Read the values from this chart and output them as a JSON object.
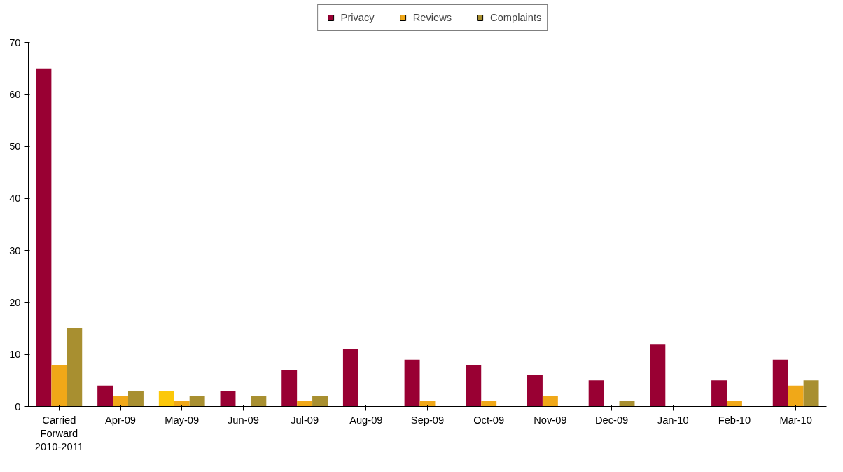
{
  "chart_data": {
    "type": "bar",
    "categories": [
      "Carried\nForward\n2010-2011",
      "Apr-09",
      "May-09",
      "Jun-09",
      "Jul-09",
      "Aug-09",
      "Sep-09",
      "Oct-09",
      "Nov-09",
      "Dec-09",
      "Jan-10",
      "Feb-10",
      "Mar-10"
    ],
    "series": [
      {
        "name": "Privacy",
        "color": "#990033",
        "colors": [
          "#990033",
          "#990033",
          "#fcc80a",
          "#990033",
          "#990033",
          "#990033",
          "#990033",
          "#990033",
          "#990033",
          "#990033",
          "#990033",
          "#990033",
          "#990033"
        ],
        "values": [
          65,
          4,
          3,
          3,
          7,
          11,
          9,
          8,
          6,
          5,
          12,
          5,
          9
        ]
      },
      {
        "name": "Reviews",
        "color": "#f0a818",
        "values": [
          8,
          2,
          1,
          0,
          1,
          0,
          1,
          1,
          2,
          0,
          0,
          1,
          4
        ]
      },
      {
        "name": "Complaints",
        "color": "#a88f30",
        "values": [
          15,
          3,
          2,
          2,
          2,
          0,
          0,
          0,
          0,
          1,
          0,
          0,
          5
        ]
      }
    ],
    "ylim": [
      0,
      70
    ],
    "yticks": [
      0,
      10,
      20,
      30,
      40,
      50,
      60,
      70
    ],
    "grid": false,
    "legend": "top"
  }
}
